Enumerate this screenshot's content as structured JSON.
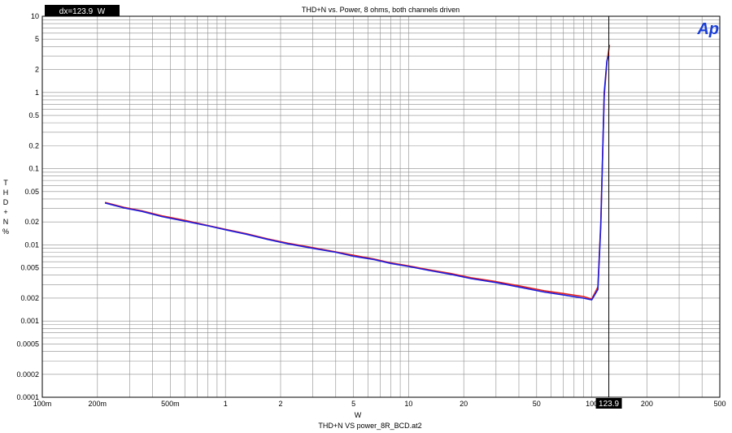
{
  "chart_data": {
    "type": "line",
    "title": "THD+N vs. Power, 8 ohms, both channels driven",
    "xlabel": "W",
    "ylabel": "THD+N %",
    "ylabel_letters": [
      "T",
      "H",
      "D",
      "+",
      "N",
      "%"
    ],
    "footer": "THD+N VS power_8R_BCD.at2",
    "logo": "Ap",
    "cursor_readout": "dx=123.9  W",
    "cursor_value": 123.9,
    "cursor_label": "123.9",
    "x_scale": "log",
    "y_scale": "log",
    "xlim": [
      0.1,
      500
    ],
    "ylim": [
      0.0001,
      10
    ],
    "grid": true,
    "x_tick_labels": [
      {
        "v": 0.1,
        "t": "100m"
      },
      {
        "v": 0.2,
        "t": "200m"
      },
      {
        "v": 0.5,
        "t": "500m"
      },
      {
        "v": 1,
        "t": "1"
      },
      {
        "v": 2,
        "t": "2"
      },
      {
        "v": 5,
        "t": "5"
      },
      {
        "v": 10,
        "t": "10"
      },
      {
        "v": 20,
        "t": "20"
      },
      {
        "v": 50,
        "t": "50"
      },
      {
        "v": 100,
        "t": "100"
      },
      {
        "v": 200,
        "t": "200"
      },
      {
        "v": 500,
        "t": "500"
      }
    ],
    "y_tick_labels": [
      {
        "v": 10,
        "t": "10"
      },
      {
        "v": 5,
        "t": "5"
      },
      {
        "v": 2,
        "t": "2"
      },
      {
        "v": 1,
        "t": "1"
      },
      {
        "v": 0.5,
        "t": "0.5"
      },
      {
        "v": 0.2,
        "t": "0.2"
      },
      {
        "v": 0.1,
        "t": "0.1"
      },
      {
        "v": 0.05,
        "t": "0.05"
      },
      {
        "v": 0.02,
        "t": "0.02"
      },
      {
        "v": 0.01,
        "t": "0.01"
      },
      {
        "v": 0.005,
        "t": "0.005"
      },
      {
        "v": 0.002,
        "t": "0.002"
      },
      {
        "v": 0.001,
        "t": "0.001"
      },
      {
        "v": 0.0005,
        "t": "0.0005"
      },
      {
        "v": 0.0002,
        "t": "0.0002"
      },
      {
        "v": 0.0001,
        "t": "0.0001"
      }
    ],
    "series": [
      {
        "color": "#e0201c",
        "x": [
          0.22,
          0.28,
          0.35,
          0.45,
          0.6,
          0.8,
          1.0,
          1.3,
          1.7,
          2.2,
          3.0,
          4.0,
          5.0,
          6.5,
          8.0,
          10,
          13,
          17,
          22,
          30,
          40,
          55,
          70,
          90,
          100,
          108,
          112,
          117,
          121,
          125
        ],
        "y": [
          0.036,
          0.031,
          0.028,
          0.024,
          0.021,
          0.018,
          0.016,
          0.014,
          0.012,
          0.0105,
          0.0092,
          0.0081,
          0.0073,
          0.0065,
          0.0058,
          0.0053,
          0.0047,
          0.0042,
          0.0037,
          0.0033,
          0.0029,
          0.0025,
          0.0023,
          0.0021,
          0.00195,
          0.0028,
          0.02,
          0.9,
          2.5,
          4.2
        ]
      },
      {
        "color": "#1c1ce0",
        "x": [
          0.22,
          0.28,
          0.35,
          0.45,
          0.6,
          0.8,
          1.0,
          1.3,
          1.7,
          2.2,
          3.0,
          4.0,
          5.0,
          6.5,
          8.0,
          10,
          13,
          17,
          22,
          30,
          40,
          55,
          70,
          90,
          100,
          108,
          112,
          117,
          121,
          123
        ],
        "y": [
          0.0355,
          0.0305,
          0.0275,
          0.0235,
          0.0205,
          0.0178,
          0.0158,
          0.0138,
          0.0118,
          0.0103,
          0.009,
          0.008,
          0.0071,
          0.0064,
          0.0057,
          0.0052,
          0.0046,
          0.0041,
          0.0036,
          0.0032,
          0.0028,
          0.0024,
          0.0022,
          0.002,
          0.0019,
          0.0026,
          0.018,
          1.0,
          2.6,
          3.0
        ]
      }
    ]
  }
}
